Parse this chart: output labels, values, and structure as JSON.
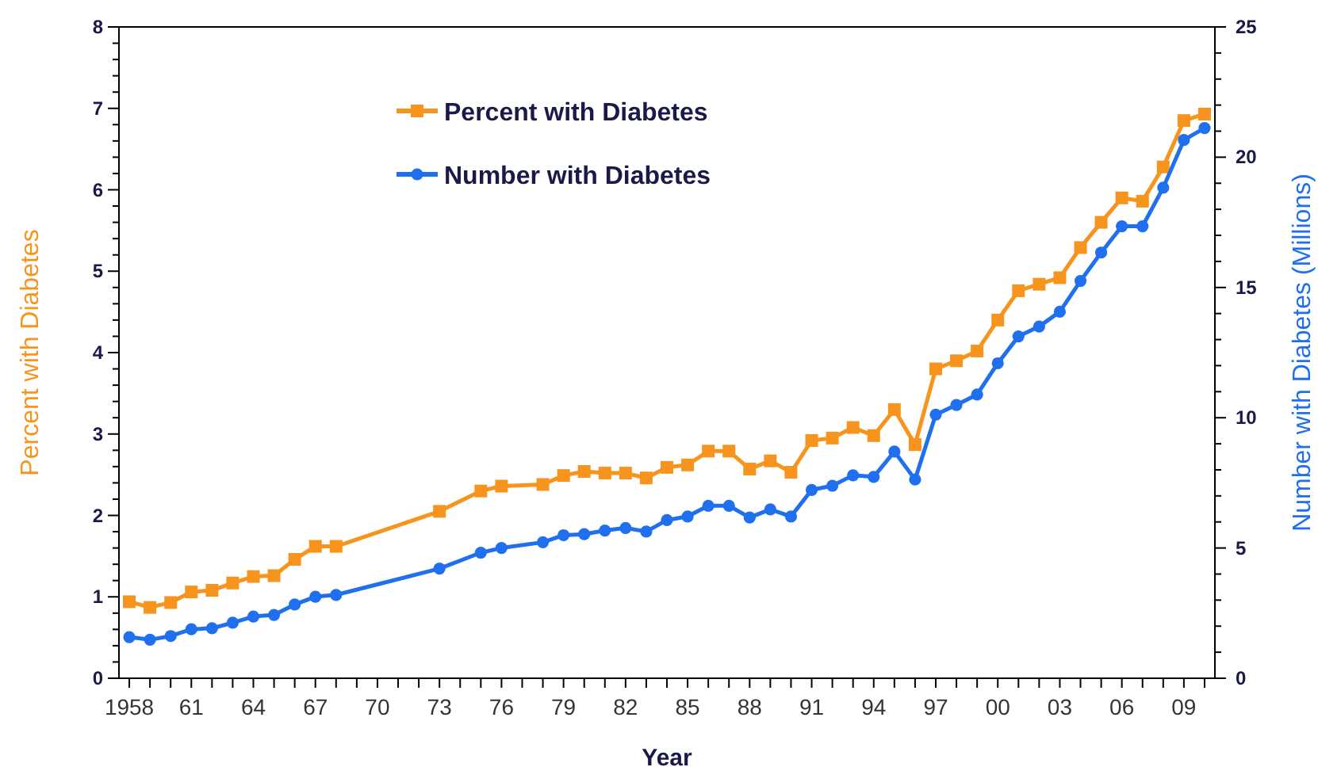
{
  "chart_data": {
    "type": "line",
    "xlabel": "Year",
    "ylabel": "Percent with Diabetes",
    "y2label": "Number with Diabetes (Millions)",
    "legend": "top left",
    "xlim": [
      1957.5,
      2010.5
    ],
    "xticks": [
      {
        "value": 1958,
        "label": "1958"
      },
      {
        "value": 1959,
        "label": null
      },
      {
        "value": 1960,
        "label": null
      },
      {
        "value": 1961,
        "label": "61"
      },
      {
        "value": 1962,
        "label": null
      },
      {
        "value": 1963,
        "label": null
      },
      {
        "value": 1964,
        "label": "64"
      },
      {
        "value": 1965,
        "label": null
      },
      {
        "value": 1966,
        "label": null
      },
      {
        "value": 1967,
        "label": "67"
      },
      {
        "value": 1968,
        "label": null
      },
      {
        "value": 1969,
        "label": null
      },
      {
        "value": 1970,
        "label": "70"
      },
      {
        "value": 1971,
        "label": null
      },
      {
        "value": 1972,
        "label": null
      },
      {
        "value": 1973,
        "label": "73"
      },
      {
        "value": 1974,
        "label": null
      },
      {
        "value": 1975,
        "label": null
      },
      {
        "value": 1976,
        "label": "76"
      },
      {
        "value": 1977,
        "label": null
      },
      {
        "value": 1978,
        "label": null
      },
      {
        "value": 1979,
        "label": "79"
      },
      {
        "value": 1980,
        "label": null
      },
      {
        "value": 1981,
        "label": null
      },
      {
        "value": 1982,
        "label": "82"
      },
      {
        "value": 1983,
        "label": null
      },
      {
        "value": 1984,
        "label": null
      },
      {
        "value": 1985,
        "label": "85"
      },
      {
        "value": 1986,
        "label": null
      },
      {
        "value": 1987,
        "label": null
      },
      {
        "value": 1988,
        "label": "88"
      },
      {
        "value": 1989,
        "label": null
      },
      {
        "value": 1990,
        "label": null
      },
      {
        "value": 1991,
        "label": "91"
      },
      {
        "value": 1992,
        "label": null
      },
      {
        "value": 1993,
        "label": null
      },
      {
        "value": 1994,
        "label": "94"
      },
      {
        "value": 1995,
        "label": null
      },
      {
        "value": 1996,
        "label": null
      },
      {
        "value": 1997,
        "label": "97"
      },
      {
        "value": 1998,
        "label": null
      },
      {
        "value": 1999,
        "label": null
      },
      {
        "value": 2000,
        "label": "00"
      },
      {
        "value": 2001,
        "label": null
      },
      {
        "value": 2002,
        "label": null
      },
      {
        "value": 2003,
        "label": "03"
      },
      {
        "value": 2004,
        "label": null
      },
      {
        "value": 2005,
        "label": null
      },
      {
        "value": 2006,
        "label": "06"
      },
      {
        "value": 2007,
        "label": null
      },
      {
        "value": 2008,
        "label": null
      },
      {
        "value": 2009,
        "label": "09"
      },
      {
        "value": 2010,
        "label": null
      }
    ],
    "ylim": [
      0,
      8
    ],
    "yticks": [
      0,
      {
        "value": 0.2,
        "label": null
      },
      {
        "value": 0.4,
        "label": null
      },
      {
        "value": 0.6,
        "label": null
      },
      {
        "value": 0.8,
        "label": null
      },
      1,
      {
        "value": 1.2,
        "label": null
      },
      {
        "value": 1.4,
        "label": null
      },
      {
        "value": 1.6,
        "label": null
      },
      {
        "value": 1.8,
        "label": null
      },
      2,
      {
        "value": 2.2,
        "label": null
      },
      {
        "value": 2.4,
        "label": null
      },
      {
        "value": 2.6,
        "label": null
      },
      {
        "value": 2.8,
        "label": null
      },
      3,
      {
        "value": 3.2,
        "label": null
      },
      {
        "value": 3.4,
        "label": null
      },
      {
        "value": 3.6,
        "label": null
      },
      {
        "value": 3.8,
        "label": null
      },
      4,
      {
        "value": 4.2,
        "label": null
      },
      {
        "value": 4.4,
        "label": null
      },
      {
        "value": 4.6,
        "label": null
      },
      {
        "value": 4.8,
        "label": null
      },
      5,
      {
        "value": 5.2,
        "label": null
      },
      {
        "value": 5.4,
        "label": null
      },
      {
        "value": 5.6,
        "label": null
      },
      {
        "value": 5.8,
        "label": null
      },
      6,
      {
        "value": 6.2,
        "label": null
      },
      {
        "value": 6.4,
        "label": null
      },
      {
        "value": 6.6,
        "label": null
      },
      {
        "value": 6.8,
        "label": null
      },
      7,
      {
        "value": 7.2,
        "label": null
      },
      {
        "value": 7.4,
        "label": null
      },
      {
        "value": 7.6,
        "label": null
      },
      {
        "value": 7.8,
        "label": null
      },
      8
    ],
    "y2lim": [
      0,
      25
    ],
    "y2ticks": [
      0,
      {
        "value": 1,
        "label": null
      },
      {
        "value": 2,
        "label": null
      },
      {
        "value": 3,
        "label": null
      },
      {
        "value": 4,
        "label": null
      },
      5,
      {
        "value": 6,
        "label": null
      },
      {
        "value": 7,
        "label": null
      },
      {
        "value": 8,
        "label": null
      },
      {
        "value": 9,
        "label": null
      },
      10,
      {
        "value": 11,
        "label": null
      },
      {
        "value": 12,
        "label": null
      },
      {
        "value": 13,
        "label": null
      },
      {
        "value": 14,
        "label": null
      },
      15,
      {
        "value": 16,
        "label": null
      },
      {
        "value": 17,
        "label": null
      },
      {
        "value": 18,
        "label": null
      },
      {
        "value": 19,
        "label": null
      },
      20,
      {
        "value": 21,
        "label": null
      },
      {
        "value": 22,
        "label": null
      },
      {
        "value": 23,
        "label": null
      },
      {
        "value": 24,
        "label": null
      },
      25
    ],
    "x": [
      1958,
      1959,
      1960,
      1961,
      1962,
      1963,
      1964,
      1965,
      1966,
      1967,
      1968,
      1973,
      1975,
      1976,
      1978,
      1979,
      1980,
      1981,
      1982,
      1983,
      1984,
      1985,
      1986,
      1987,
      1988,
      1989,
      1990,
      1991,
      1992,
      1993,
      1994,
      1995,
      1996,
      1997,
      1998,
      1999,
      2000,
      2001,
      2002,
      2003,
      2004,
      2005,
      2006,
      2007,
      2008,
      2009,
      2010
    ],
    "series": [
      {
        "name": "Percent with Diabetes",
        "color": "#f7941d",
        "marker": "square",
        "values": [
          0.94,
          0.87,
          0.93,
          1.06,
          1.08,
          1.17,
          1.25,
          1.26,
          1.46,
          1.62,
          1.62,
          2.05,
          2.3,
          2.36,
          2.38,
          2.49,
          2.54,
          2.52,
          2.52,
          2.46,
          2.59,
          2.62,
          2.79,
          2.79,
          2.57,
          2.67,
          2.53,
          2.92,
          2.95,
          3.08,
          2.98,
          3.3,
          2.87,
          3.8,
          3.9,
          4.02,
          4.4,
          4.76,
          4.84,
          4.92,
          5.29,
          5.6,
          5.9,
          5.86,
          6.28,
          6.85,
          6.93
        ]
      },
      {
        "name": "Number with Diabetes",
        "color": "#1f6fef",
        "marker": "circle",
        "axis": "y2",
        "values": [
          1.58,
          1.48,
          1.62,
          1.88,
          1.92,
          2.13,
          2.37,
          2.43,
          2.83,
          3.13,
          3.2,
          4.21,
          4.82,
          5.0,
          5.22,
          5.49,
          5.53,
          5.67,
          5.77,
          5.63,
          6.07,
          6.21,
          6.62,
          6.62,
          6.17,
          6.48,
          6.21,
          7.23,
          7.39,
          7.79,
          7.73,
          8.7,
          7.63,
          10.12,
          10.49,
          10.89,
          12.09,
          13.12,
          13.5,
          14.07,
          15.25,
          16.34,
          17.35,
          17.35,
          18.83,
          20.66,
          21.12
        ]
      }
    ]
  }
}
